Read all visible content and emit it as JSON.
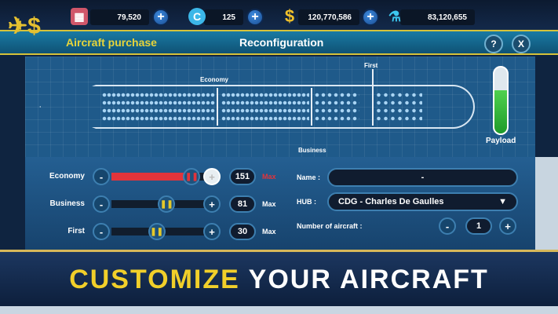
{
  "resources": [
    {
      "icon": "ticket-icon",
      "value": "79,520"
    },
    {
      "icon": "coin-c-icon",
      "value": "125"
    },
    {
      "icon": "dollar-icon",
      "value": "120,770,586"
    },
    {
      "icon": "flask-icon",
      "value": "83,120,655"
    }
  ],
  "header": {
    "left_title": "Aircraft purchase",
    "center_title": "Reconfiguration",
    "help_label": "?",
    "close_label": "X"
  },
  "seatmap": {
    "economy_label": "Economy",
    "business_label": "Business",
    "first_label": "First",
    "payload_label": "Payload",
    "payload_level": 0.65
  },
  "config": {
    "rows": [
      {
        "label": "Economy",
        "value": "151",
        "max_label": "Max",
        "max_active": true,
        "slider_level": 0.8
      },
      {
        "label": "Business",
        "value": "81",
        "max_label": "Max",
        "max_active": false,
        "slider_level": 0.55
      },
      {
        "label": "First",
        "value": "30",
        "max_label": "Max",
        "max_active": false,
        "slider_level": 0.45
      }
    ],
    "minus": "-",
    "plus": "+",
    "name_label": "Name :",
    "name_value": "-",
    "hub_label": "HUB :",
    "hub_value": "CDG - Charles De Gaulles",
    "count_label": "Number of aircraft :",
    "count_value": "1"
  },
  "banner": {
    "word1": "CUSTOMIZE",
    "word2": "YOUR AIRCRAFT"
  },
  "colors": {
    "accent_yellow": "#f1cf2a",
    "max_red": "#e2343b",
    "payload_green": "#2fb43a"
  }
}
